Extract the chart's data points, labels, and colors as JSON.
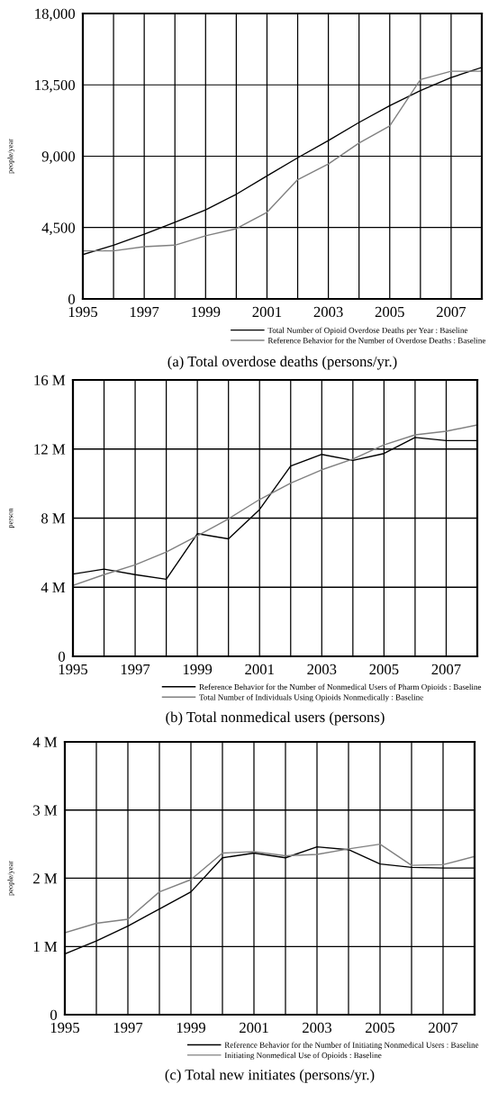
{
  "chart_data": [
    {
      "type": "line",
      "ylabel": "people/year",
      "annotations": [
        "(a) Total overdose deaths (persons/yr.)"
      ],
      "x": [
        1995,
        1996,
        1997,
        1998,
        1999,
        2000,
        2001,
        2002,
        2003,
        2004,
        2005,
        2006,
        2007,
        2008
      ],
      "xlim": [
        1995,
        2008
      ],
      "xticks": [
        1995,
        {
          "value": 1996,
          "label": null
        },
        1997,
        {
          "value": 1998,
          "label": null
        },
        1999,
        {
          "value": 2000,
          "label": null
        },
        2001,
        {
          "value": 2002,
          "label": null
        },
        2003,
        {
          "value": 2004,
          "label": null
        },
        2005,
        {
          "value": 2006,
          "label": null
        },
        2007,
        {
          "value": 2008,
          "label": null
        }
      ],
      "ylim": [
        0,
        18000
      ],
      "yticks": [
        0,
        {
          "value": 4500,
          "label": "4,500"
        },
        {
          "value": 9000,
          "label": "9,000"
        },
        {
          "value": 13500,
          "label": "13,500"
        },
        {
          "value": 18000,
          "label": "18,000"
        }
      ],
      "grid": true,
      "legend": "bottom",
      "series": [
        {
          "name": "Total Number of Opioid Overdose Deaths per Year : Baseline",
          "color": "#000000",
          "values": [
            2800,
            3390,
            4080,
            4830,
            5610,
            6600,
            7760,
            8900,
            9990,
            11130,
            12190,
            13140,
            13960,
            14600
          ]
        },
        {
          "name": "Reference Behavior for the Number of Overdose Deaths : Baseline",
          "color": "#808080",
          "values": [
            3030,
            3030,
            3290,
            3390,
            3980,
            4430,
            5460,
            7520,
            8510,
            9830,
            10910,
            13830,
            14360,
            14360
          ]
        }
      ]
    },
    {
      "type": "line",
      "ylabel": "person",
      "annotations": [
        "(b) Total nonmedical users (persons)"
      ],
      "x": [
        1995,
        1996,
        1997,
        1998,
        1999,
        2000,
        2001,
        2002,
        2003,
        2004,
        2005,
        2006,
        2007,
        2008
      ],
      "xlim": [
        1995,
        2008
      ],
      "xticks": [
        1995,
        {
          "value": 1996,
          "label": null
        },
        1997,
        {
          "value": 1998,
          "label": null
        },
        1999,
        {
          "value": 2000,
          "label": null
        },
        2001,
        {
          "value": 2002,
          "label": null
        },
        2003,
        {
          "value": 2004,
          "label": null
        },
        2005,
        {
          "value": 2006,
          "label": null
        },
        2007,
        {
          "value": 2008,
          "label": null
        }
      ],
      "ylim": [
        0,
        16
      ],
      "yticks": [
        0,
        {
          "value": 4,
          "label": "4 M"
        },
        {
          "value": 8,
          "label": "8 M"
        },
        {
          "value": 12,
          "label": "12 M"
        },
        {
          "value": 16,
          "label": "16 M"
        }
      ],
      "grid": true,
      "legend": "bottom",
      "series": [
        {
          "name": "Reference Behavior for the Number of Nonmedical Users of Pharm Opioids : Baseline",
          "color": "#000000",
          "values": [
            4.76,
            5.05,
            4.73,
            4.46,
            7.1,
            6.8,
            8.5,
            11.02,
            11.69,
            11.34,
            11.74,
            12.67,
            12.49,
            12.49
          ]
        },
        {
          "name": "Total Number of Individuals Using Opioids Nonmedically : Baseline",
          "color": "#808080",
          "values": [
            4.1,
            4.73,
            5.3,
            6.04,
            6.98,
            7.96,
            9.08,
            10.03,
            10.8,
            11.42,
            12.24,
            12.82,
            13.03,
            13.39
          ]
        }
      ]
    },
    {
      "type": "line",
      "ylabel": "people/year",
      "annotations": [
        "(c) Total new initiates (persons/yr.)"
      ],
      "x": [
        1995,
        1996,
        1997,
        1998,
        1999,
        2000,
        2001,
        2002,
        2003,
        2004,
        2005,
        2006,
        2007,
        2008
      ],
      "xlim": [
        1995,
        2008
      ],
      "xticks": [
        1995,
        {
          "value": 1996,
          "label": null
        },
        1997,
        {
          "value": 1998,
          "label": null
        },
        1999,
        {
          "value": 2000,
          "label": null
        },
        2001,
        {
          "value": 2002,
          "label": null
        },
        2003,
        {
          "value": 2004,
          "label": null
        },
        2005,
        {
          "value": 2006,
          "label": null
        },
        2007,
        {
          "value": 2008,
          "label": null
        }
      ],
      "ylim": [
        0,
        4
      ],
      "yticks": [
        0,
        {
          "value": 1,
          "label": "1 M"
        },
        {
          "value": 2,
          "label": "2 M"
        },
        {
          "value": 3,
          "label": "3 M"
        },
        {
          "value": 4,
          "label": "4 M"
        }
      ],
      "grid": true,
      "legend": "bottom",
      "series": [
        {
          "name": "Reference Behavior for the Number of Initiating Nonmedical Users : Baseline",
          "color": "#000000",
          "values": [
            0.89,
            1.08,
            1.3,
            1.55,
            1.8,
            2.3,
            2.37,
            2.3,
            2.46,
            2.42,
            2.21,
            2.16,
            2.15,
            2.15
          ]
        },
        {
          "name": "Initiating Nonmedical Use of Opioids : Baseline",
          "color": "#808080",
          "values": [
            1.2,
            1.34,
            1.4,
            1.8,
            1.98,
            2.37,
            2.39,
            2.33,
            2.35,
            2.43,
            2.5,
            2.19,
            2.2,
            2.32
          ]
        }
      ]
    }
  ]
}
